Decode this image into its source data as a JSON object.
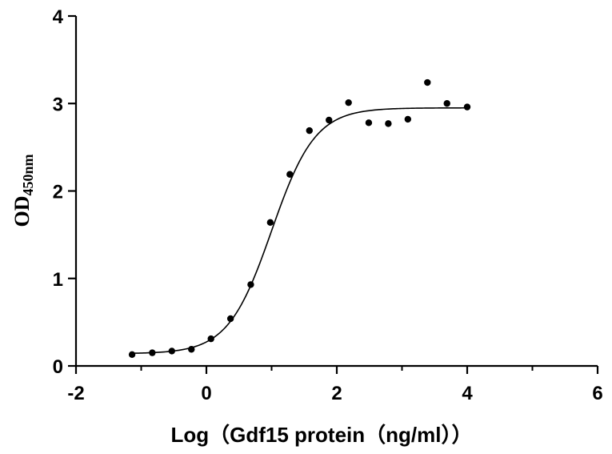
{
  "chart_data": {
    "type": "scatter",
    "title": "",
    "xlabel": "Log（Gdf15 protein（ng/ml））",
    "ylabel": "OD",
    "ylabel_subscript": "450nm",
    "xlim": [
      -2,
      6
    ],
    "ylim": [
      0,
      4
    ],
    "x_ticks": [
      -2,
      0,
      2,
      4,
      6
    ],
    "x_tick_labels": [
      "-2",
      "0",
      "2",
      "4",
      "6"
    ],
    "y_ticks": [
      0,
      1,
      2,
      3,
      4
    ],
    "y_tick_labels": [
      "0",
      "1",
      "2",
      "3",
      "4"
    ],
    "x_minor_ticks": [
      -1,
      1,
      3,
      5
    ],
    "grid": false,
    "legend": "none",
    "marker_color": "#000000",
    "series": [
      {
        "points": [
          {
            "x": -1.14,
            "y": 0.13
          },
          {
            "x": -0.83,
            "y": 0.15
          },
          {
            "x": -0.53,
            "y": 0.17
          },
          {
            "x": -0.23,
            "y": 0.19
          },
          {
            "x": 0.07,
            "y": 0.31
          },
          {
            "x": 0.37,
            "y": 0.54
          },
          {
            "x": 0.68,
            "y": 0.93
          },
          {
            "x": 0.98,
            "y": 1.64
          },
          {
            "x": 1.28,
            "y": 2.19
          },
          {
            "x": 1.58,
            "y": 2.69
          },
          {
            "x": 1.88,
            "y": 2.81
          },
          {
            "x": 2.18,
            "y": 3.01
          },
          {
            "x": 2.49,
            "y": 2.78
          },
          {
            "x": 2.79,
            "y": 2.77
          },
          {
            "x": 3.09,
            "y": 2.82
          },
          {
            "x": 3.39,
            "y": 3.24
          },
          {
            "x": 3.69,
            "y": 3.0
          },
          {
            "x": 4.0,
            "y": 2.96
          }
        ]
      }
    ],
    "fit_curve": {
      "type": "sigmoidal",
      "bottom": 0.14,
      "top": 2.95,
      "logEC50": 1.0,
      "hill_slope": 1.3,
      "x_range": [
        -1.14,
        4.0
      ]
    }
  }
}
